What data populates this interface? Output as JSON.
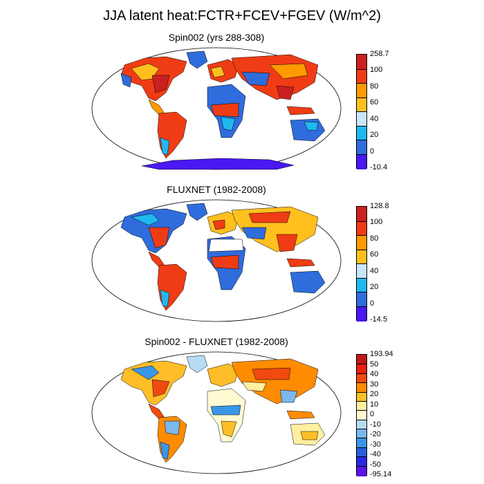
{
  "figure_title": "JJA latent heat:FCTR+FCEV+FGEV (W/m^2)",
  "panels": [
    {
      "title": "Spin002 (yrs 288-308)",
      "colorbar": {
        "labels": [
          "258.7",
          "100",
          "80",
          "60",
          "40",
          "20",
          "0",
          "-10.4"
        ],
        "colors": [
          "#cc2020",
          "#f03c14",
          "#ff9a00",
          "#ffc01e",
          "#c8e6f8",
          "#1fb8f0",
          "#2f6cdc",
          "#4a18f2"
        ]
      }
    },
    {
      "title": "FLUXNET (1982-2008)",
      "colorbar": {
        "labels": [
          "128.8",
          "100",
          "80",
          "60",
          "40",
          "20",
          "0",
          "-14.5"
        ],
        "colors": [
          "#cc2020",
          "#f03c14",
          "#ff9a00",
          "#ffc01e",
          "#c8e6f8",
          "#1fb8f0",
          "#2f6cdc",
          "#4a18f2"
        ]
      }
    },
    {
      "title": "Spin002 - FLUXNET (1982-2008)",
      "colorbar": {
        "labels": [
          "193.94",
          "50",
          "40",
          "30",
          "20",
          "10",
          "0",
          "-10",
          "-20",
          "-30",
          "-40",
          "-50",
          "-95.14"
        ],
        "colors": [
          "#c01818",
          "#e82010",
          "#f04a10",
          "#ff8c00",
          "#ffbe28",
          "#fff0a0",
          "#fffad2",
          "#b6dcf4",
          "#7ab8ee",
          "#3a96e8",
          "#2660d8",
          "#2a28e8",
          "#5a14e6"
        ]
      }
    }
  ]
}
